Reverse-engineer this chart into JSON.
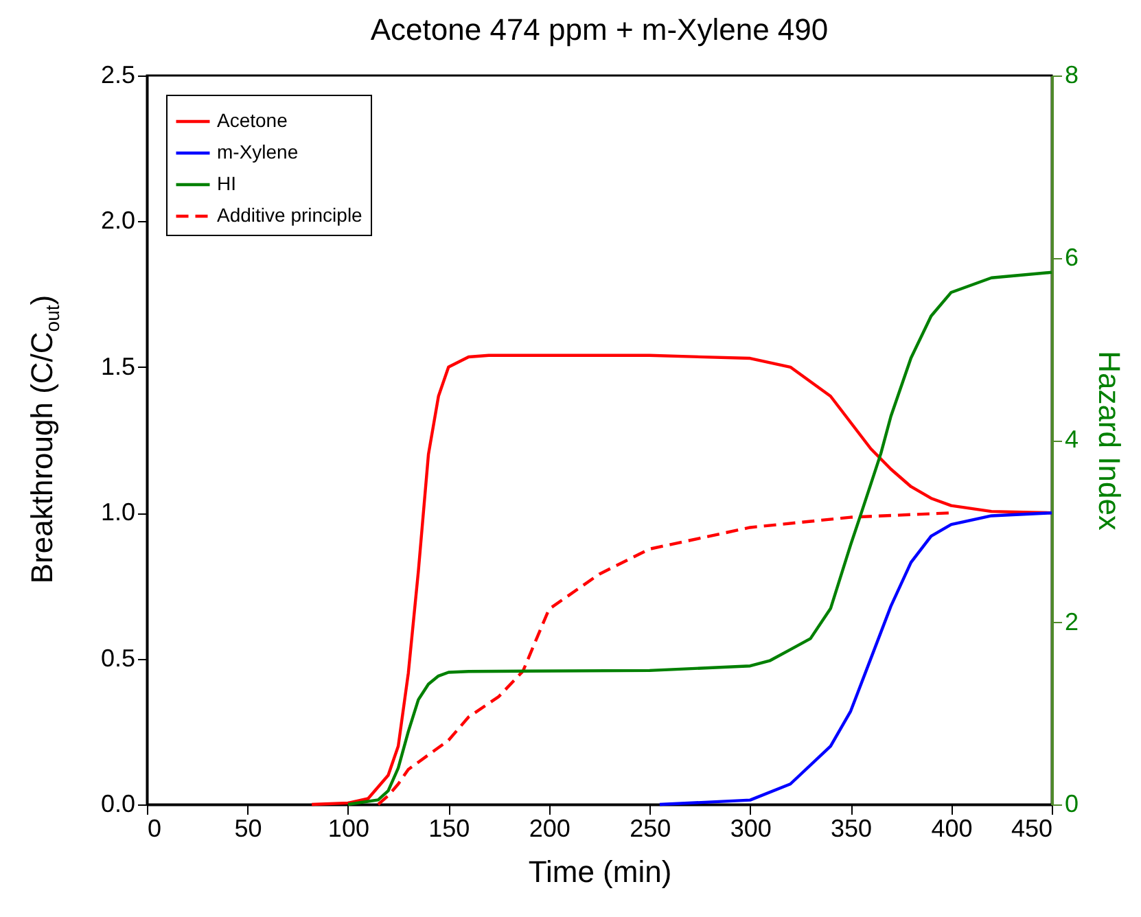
{
  "chart_data": {
    "type": "line",
    "title": "Acetone 474 ppm + m-Xylene 490",
    "xlabel": "Time (min)",
    "ylabel": "Breakthrough (C/C$_{out}$)",
    "y2label": "Hazard Index",
    "xlim": [
      0,
      450
    ],
    "xticks": [
      0,
      50,
      100,
      150,
      200,
      250,
      300,
      350,
      400,
      450
    ],
    "ylim": [
      0,
      2.5
    ],
    "yticks": [
      {
        "value": 0,
        "label": "0.0"
      },
      0.5,
      {
        "value": 1,
        "label": "1.0"
      },
      1.5,
      {
        "value": 2,
        "label": "2.0"
      },
      2.5
    ],
    "y2lim": [
      0,
      8
    ],
    "y2ticks": [
      0,
      2,
      4,
      6,
      8
    ],
    "legend": "top left",
    "grid": false,
    "marker": "none",
    "series": [
      {
        "name": "Acetone",
        "color": "#ff0000",
        "line_style": "solid",
        "x": [
          82,
          100,
          110,
          120,
          125,
          130,
          135,
          140,
          145,
          150,
          160,
          170,
          250,
          300,
          320,
          340,
          360,
          370,
          380,
          390,
          400,
          420,
          450
        ],
        "values": [
          0,
          0.005,
          0.02,
          0.1,
          0.2,
          0.45,
          0.8,
          1.2,
          1.4,
          1.5,
          1.535,
          1.54,
          1.54,
          1.53,
          1.5,
          1.4,
          1.22,
          1.15,
          1.09,
          1.05,
          1.025,
          1.005,
          1.0
        ]
      },
      {
        "name": "m-Xylene",
        "color": "#0000ff",
        "line_style": "solid",
        "x": [
          255,
          300,
          320,
          340,
          350,
          360,
          370,
          380,
          390,
          400,
          420,
          450
        ],
        "values": [
          0,
          0.015,
          0.07,
          0.2,
          0.32,
          0.5,
          0.68,
          0.83,
          0.92,
          0.96,
          0.99,
          1.0
        ]
      },
      {
        "name": "HI",
        "color": "#008000",
        "line_style": "solid",
        "axis": "y2",
        "x": [
          100,
          115,
          120,
          125,
          130,
          135,
          140,
          145,
          150,
          160,
          250,
          300,
          310,
          320,
          330,
          340,
          350,
          355,
          365,
          370,
          380,
          390,
          400,
          420,
          450
        ],
        "values": [
          0,
          0.05,
          0.15,
          0.4,
          0.8,
          1.15,
          1.32,
          1.41,
          1.45,
          1.46,
          1.47,
          1.52,
          1.58,
          1.7,
          1.82,
          2.15,
          2.85,
          3.18,
          3.85,
          4.26,
          4.9,
          5.36,
          5.62,
          5.78,
          5.84
        ]
      },
      {
        "name": "Additive principle",
        "color": "#ff0000",
        "line_style": "dashed",
        "x": [
          115,
          120,
          125,
          130,
          140,
          150,
          160,
          175,
          187,
          200,
          225,
          250,
          300,
          350,
          400
        ],
        "values": [
          0,
          0.03,
          0.07,
          0.12,
          0.17,
          0.22,
          0.3,
          0.37,
          0.457,
          0.67,
          0.79,
          0.876,
          0.95,
          0.985,
          1.0
        ]
      }
    ]
  }
}
